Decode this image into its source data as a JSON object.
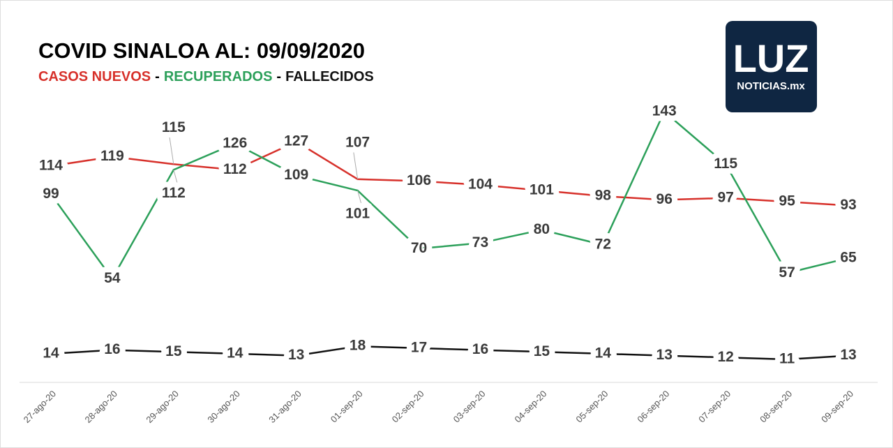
{
  "chart_data": {
    "type": "line",
    "title": "COVID SINALOA AL: 09/09/2020",
    "legend_separator": "-",
    "categories": [
      "27-ago-20",
      "28-ago-20",
      "29-ago-20",
      "30-ago-20",
      "31-ago-20",
      "01-sep-20",
      "02-sep-20",
      "03-sep-20",
      "04-sep-20",
      "05-sep-20",
      "06-sep-20",
      "07-sep-20",
      "08-sep-20",
      "09-sep-20"
    ],
    "series": [
      {
        "name": "CASOS NUEVOS",
        "color": "#d7312b",
        "values": [
          114,
          119,
          115,
          112,
          127,
          107,
          106,
          104,
          101,
          98,
          96,
          97,
          95,
          93
        ]
      },
      {
        "name": "RECUPERADOS",
        "color": "#2ca05a",
        "values": [
          99,
          54,
          112,
          126,
          109,
          101,
          70,
          73,
          80,
          72,
          143,
          115,
          57,
          65
        ]
      },
      {
        "name": "FALLECIDOS",
        "color": "#111111",
        "values": [
          14,
          16,
          15,
          14,
          13,
          18,
          17,
          16,
          15,
          14,
          13,
          12,
          11,
          13
        ]
      }
    ]
  },
  "logo": {
    "text": "LUZ",
    "subtext": "NOTICIAS.mx"
  }
}
